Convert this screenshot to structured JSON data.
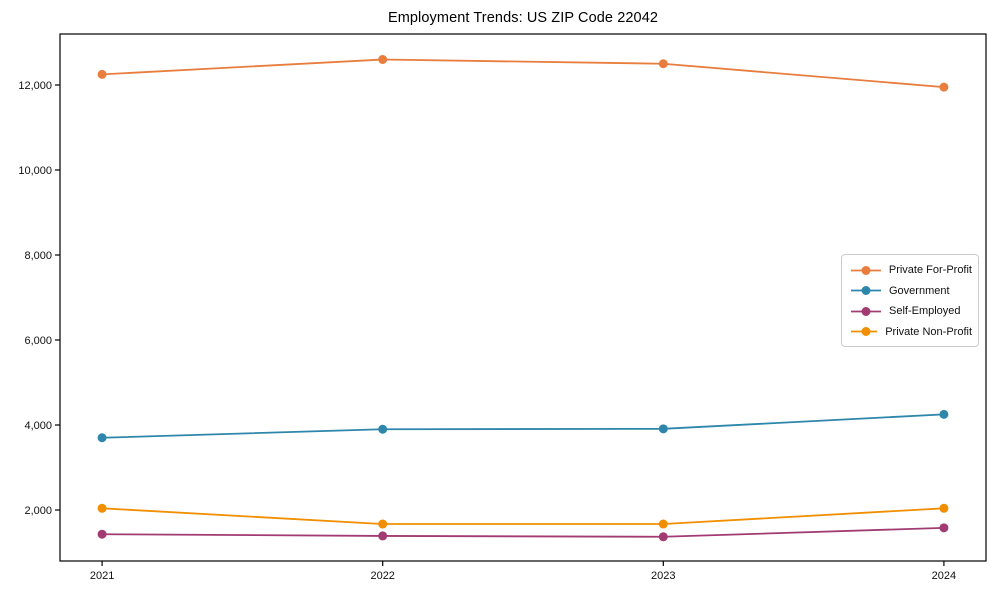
{
  "figure": {
    "background": "#ffffff",
    "axis_color": "#000000",
    "text_color": "#111111",
    "legend_border_color": "#cccccc"
  },
  "chart_data": {
    "type": "line",
    "title": "Employment Trends: US ZIP Code 22042",
    "categories": [
      "2021",
      "2022",
      "2023",
      "2024"
    ],
    "series": [
      {
        "name": "Private For-Profit",
        "color": "#E87D3E",
        "values": [
          12250,
          12600,
          12500,
          11950
        ]
      },
      {
        "name": "Government",
        "color": "#2E86AB",
        "values": [
          3700,
          3900,
          3910,
          4250
        ]
      },
      {
        "name": "Self-Employed",
        "color": "#A23B72",
        "values": [
          1430,
          1390,
          1370,
          1580
        ]
      },
      {
        "name": "Private Non-Profit",
        "color": "#F18F01",
        "values": [
          2040,
          1670,
          1670,
          2040
        ]
      }
    ],
    "xlabel": "",
    "ylabel": "",
    "ylim": [
      800,
      13200
    ],
    "yticks": [
      2000,
      4000,
      6000,
      8000,
      10000,
      12000
    ],
    "ytick_labels": [
      "2,000",
      "4,000",
      "6,000",
      "8,000",
      "10,000",
      "12,000"
    ],
    "grid": false,
    "legend_position": "right-middle",
    "marker": "circle",
    "marker_radius": 4.5,
    "line_width": 1.8
  }
}
